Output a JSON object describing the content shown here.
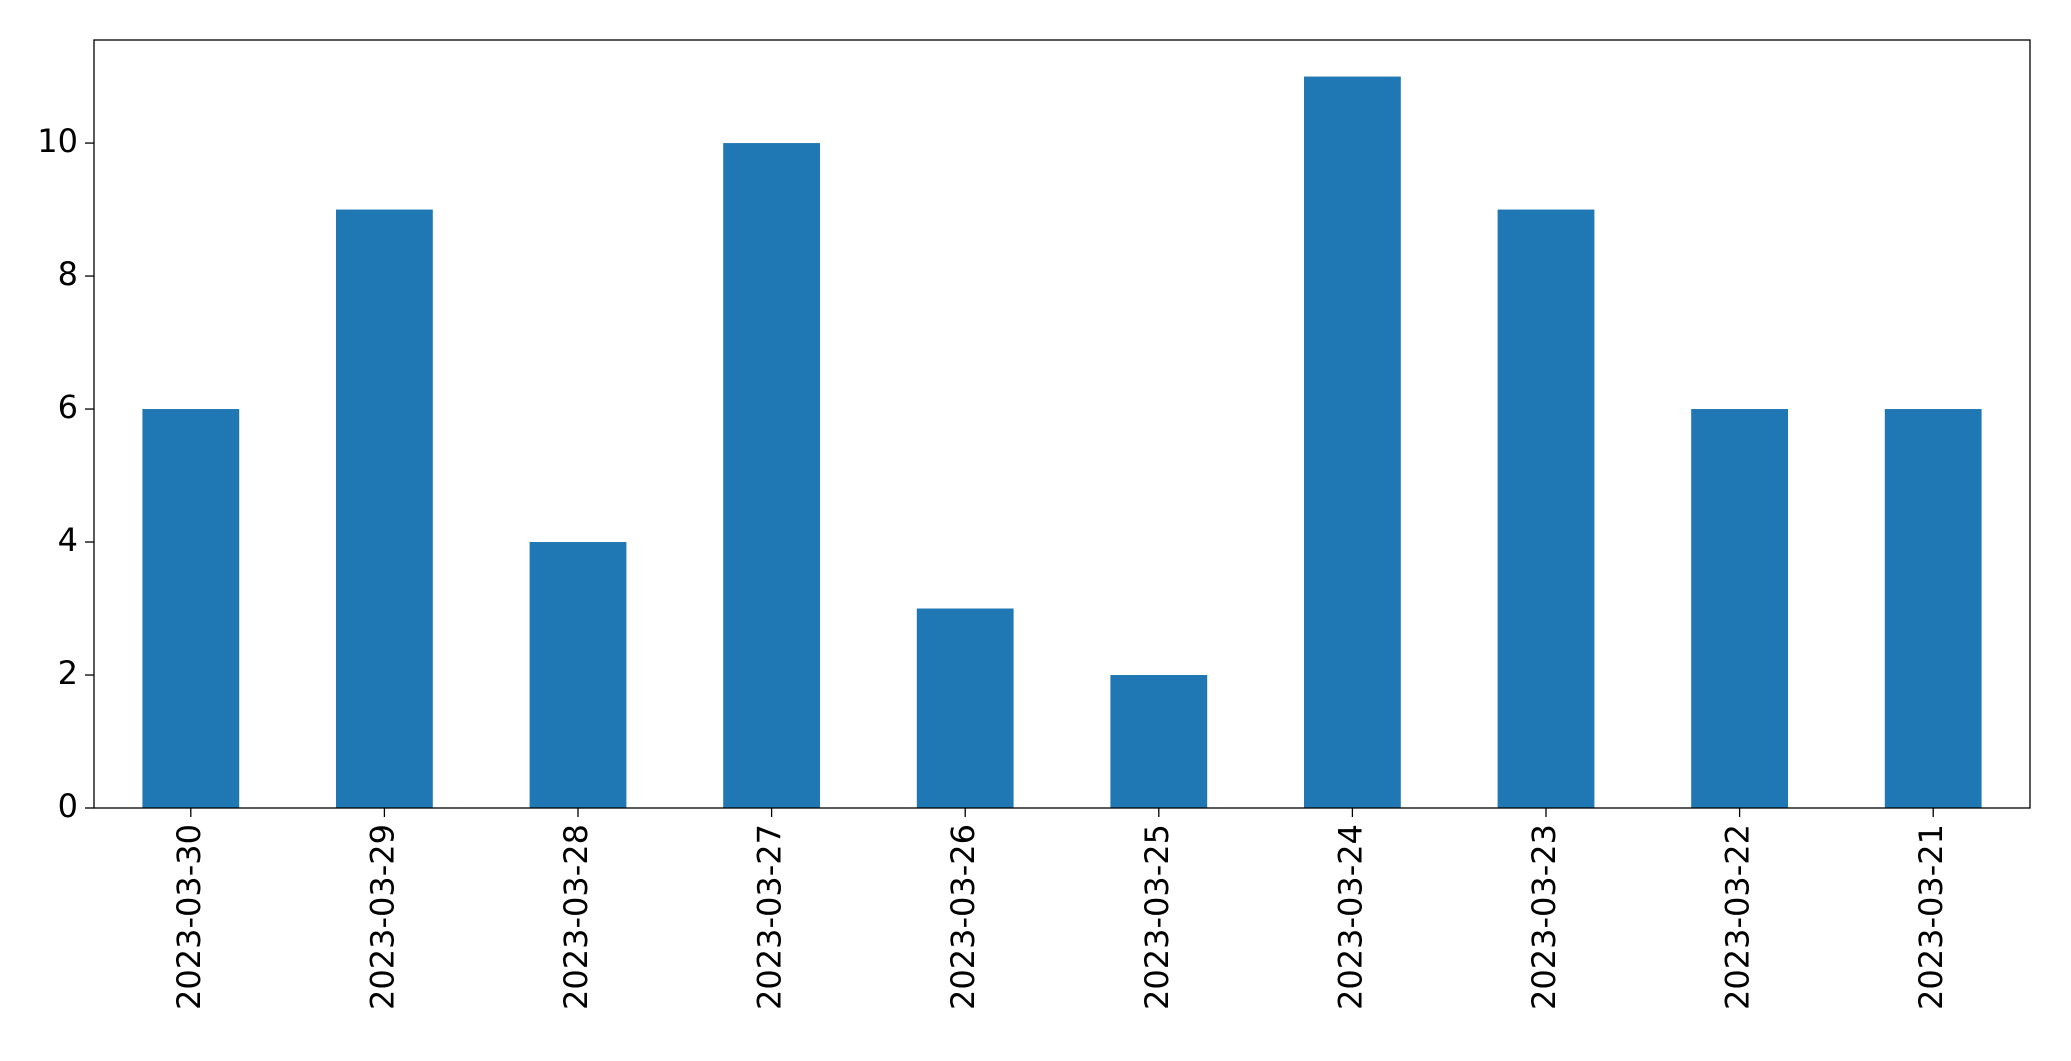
{
  "chart_data": {
    "type": "bar",
    "categories": [
      "2023-03-30",
      "2023-03-29",
      "2023-03-28",
      "2023-03-27",
      "2023-03-26",
      "2023-03-25",
      "2023-03-24",
      "2023-03-23",
      "2023-03-22",
      "2023-03-21"
    ],
    "values": [
      6,
      9,
      4,
      10,
      3,
      2,
      11,
      9,
      6,
      6
    ],
    "color": "#1f77b4",
    "ylim": [
      0,
      11.55
    ],
    "yticks": [
      0,
      2,
      4,
      6,
      8,
      10
    ],
    "grid": false
  }
}
